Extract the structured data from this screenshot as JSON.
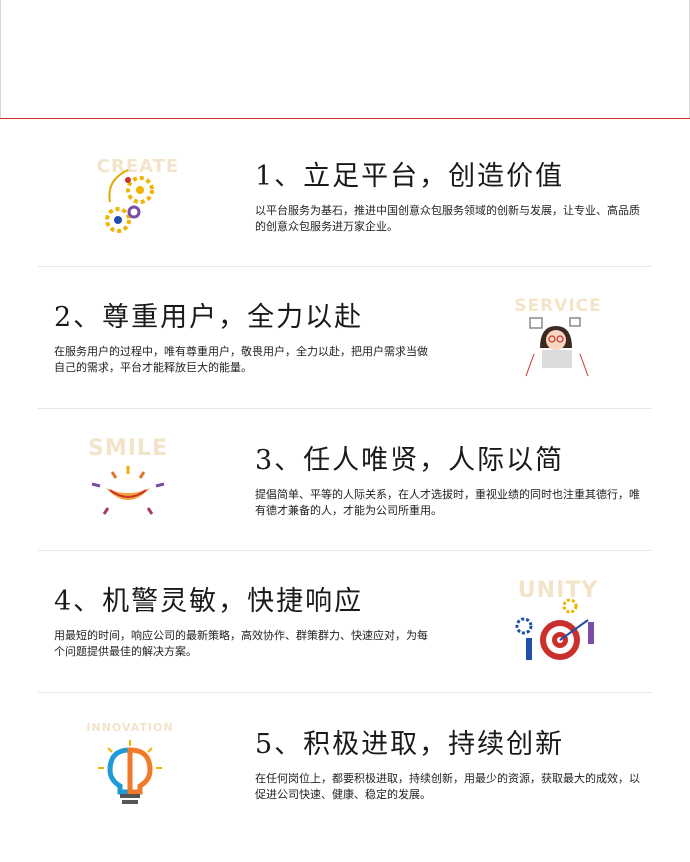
{
  "colors": {
    "accent_line": "#c9302c",
    "divider": "#e6e6e6",
    "illustration_word": "#f3e4c9"
  },
  "sections": [
    {
      "title": "1、立足平台，创造价值",
      "desc": "以平台服务为基石，推进中国创意众包服务领域的创新与发展，让专业、高品质的创意众包服务进万家企业。",
      "illustration": {
        "word": "CREATE",
        "icon": "create-gears-icon"
      }
    },
    {
      "title": "2、尊重用户，全力以赴",
      "desc": "在服务用户的过程中，唯有尊重用户，敬畏用户，全力以赴，把用户需求当做自己的需求，平台才能释放巨大的能量。",
      "illustration": {
        "word": "SERVICE",
        "icon": "service-person-icon"
      }
    },
    {
      "title": "3、任人唯贤，人际以简",
      "desc": "提倡简单、平等的人际关系，在人才选拔时，重视业绩的同时也注重其德行，唯有德才兼备的人，才能为公司所重用。",
      "illustration": {
        "word": "SMILE",
        "icon": "smile-face-icon"
      }
    },
    {
      "title": "4、机警灵敏，快捷响应",
      "desc": "用最短的时间，响应公司的最新策略，高效协作、群策群力、快速应对，为每个问题提供最佳的解决方案。",
      "illustration": {
        "word": "UNITY",
        "icon": "unity-target-icon"
      }
    },
    {
      "title": "5、积极进取，持续创新",
      "desc": "在任何岗位上，都要积极进取，持续创新，用最少的资源，获取最大的成效，以促进公司快速、健康、稳定的发展。",
      "illustration": {
        "word": "INNOVATION",
        "icon": "innovation-bulb-icon"
      }
    }
  ]
}
